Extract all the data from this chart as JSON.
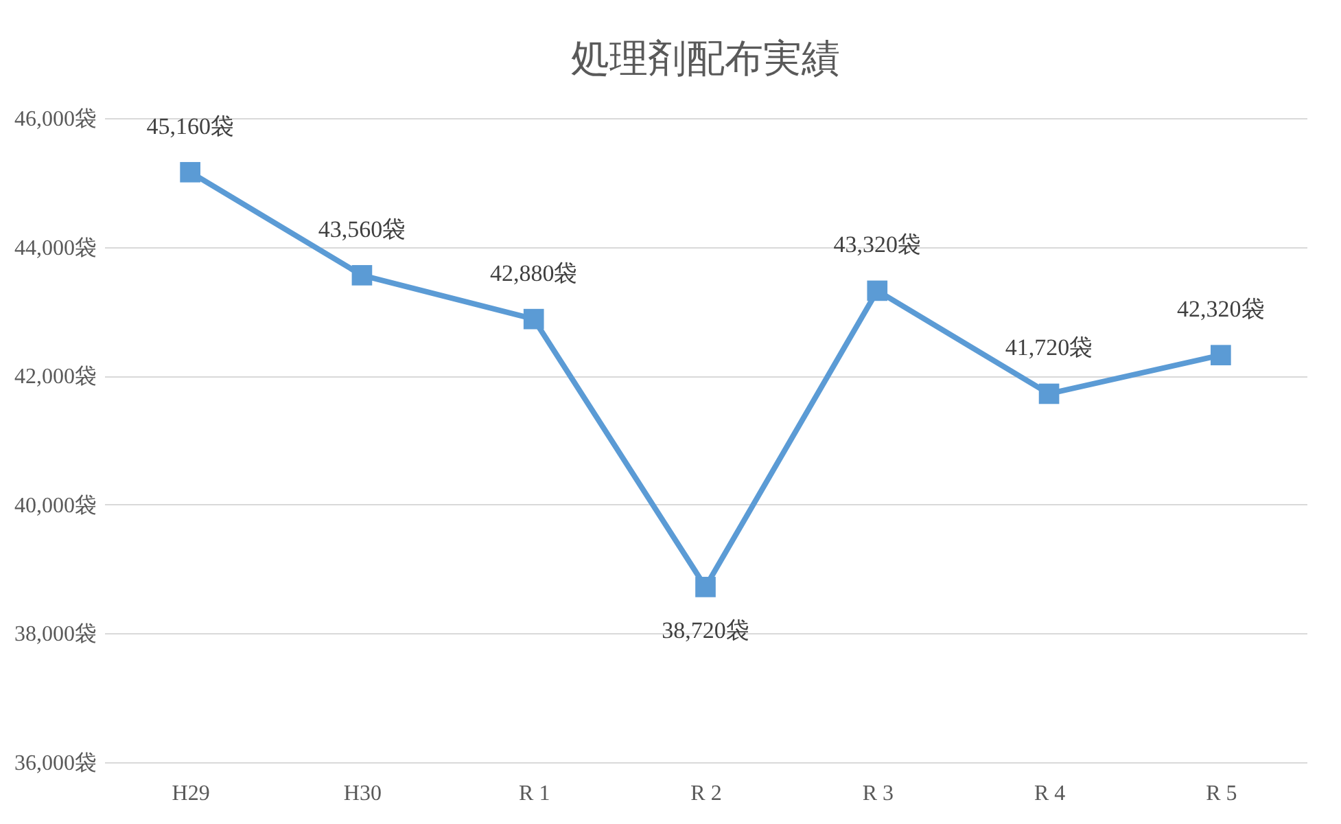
{
  "chart_data": {
    "type": "line",
    "title": "処理剤配布実績",
    "categories": [
      "H29",
      "H30",
      "R 1",
      "R 2",
      "R 3",
      "R 4",
      "R 5"
    ],
    "series": [
      {
        "color": "#5b9bd5",
        "values": [
          45160,
          43560,
          42880,
          38720,
          43320,
          41720,
          42320
        ]
      }
    ],
    "value_labels": [
      "45,160袋",
      "43,560袋",
      "42,880袋",
      "38,720袋",
      "43,320袋",
      "41,720袋",
      "42,320袋"
    ],
    "ylim": [
      36000,
      46000
    ],
    "yticks": [
      {
        "value": 36000,
        "label": "36,000袋"
      },
      {
        "value": 38000,
        "label": "38,000袋"
      },
      {
        "value": 40000,
        "label": "40,000袋"
      },
      {
        "value": 42000,
        "label": "42,000袋"
      },
      {
        "value": 44000,
        "label": "44,000袋"
      },
      {
        "value": 46000,
        "label": "46,000袋"
      }
    ],
    "grid": "y",
    "marker": "square",
    "line_style": "solid"
  }
}
